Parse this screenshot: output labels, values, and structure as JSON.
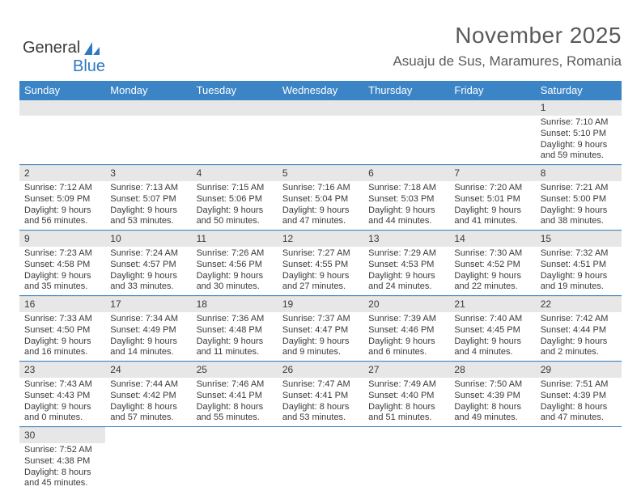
{
  "logo": {
    "word1": "General",
    "word2": "Blue"
  },
  "header": {
    "title": "November 2025",
    "location": "Asuaju de Sus, Maramures, Romania"
  },
  "colors": {
    "header_bg": "#3b85c6",
    "header_fg": "#ffffff",
    "daybar_bg": "#e7e7e7",
    "cell_border": "#3b85c6",
    "text": "#3a3a3a",
    "logo_blue": "#2d79c2"
  },
  "daysOfWeek": [
    "Sunday",
    "Monday",
    "Tuesday",
    "Wednesday",
    "Thursday",
    "Friday",
    "Saturday"
  ],
  "startOffset": 6,
  "days": [
    {
      "n": 1,
      "sunrise": "7:10 AM",
      "sunset": "5:10 PM",
      "dl": "9 hours and 59 minutes."
    },
    {
      "n": 2,
      "sunrise": "7:12 AM",
      "sunset": "5:09 PM",
      "dl": "9 hours and 56 minutes."
    },
    {
      "n": 3,
      "sunrise": "7:13 AM",
      "sunset": "5:07 PM",
      "dl": "9 hours and 53 minutes."
    },
    {
      "n": 4,
      "sunrise": "7:15 AM",
      "sunset": "5:06 PM",
      "dl": "9 hours and 50 minutes."
    },
    {
      "n": 5,
      "sunrise": "7:16 AM",
      "sunset": "5:04 PM",
      "dl": "9 hours and 47 minutes."
    },
    {
      "n": 6,
      "sunrise": "7:18 AM",
      "sunset": "5:03 PM",
      "dl": "9 hours and 44 minutes."
    },
    {
      "n": 7,
      "sunrise": "7:20 AM",
      "sunset": "5:01 PM",
      "dl": "9 hours and 41 minutes."
    },
    {
      "n": 8,
      "sunrise": "7:21 AM",
      "sunset": "5:00 PM",
      "dl": "9 hours and 38 minutes."
    },
    {
      "n": 9,
      "sunrise": "7:23 AM",
      "sunset": "4:58 PM",
      "dl": "9 hours and 35 minutes."
    },
    {
      "n": 10,
      "sunrise": "7:24 AM",
      "sunset": "4:57 PM",
      "dl": "9 hours and 33 minutes."
    },
    {
      "n": 11,
      "sunrise": "7:26 AM",
      "sunset": "4:56 PM",
      "dl": "9 hours and 30 minutes."
    },
    {
      "n": 12,
      "sunrise": "7:27 AM",
      "sunset": "4:55 PM",
      "dl": "9 hours and 27 minutes."
    },
    {
      "n": 13,
      "sunrise": "7:29 AM",
      "sunset": "4:53 PM",
      "dl": "9 hours and 24 minutes."
    },
    {
      "n": 14,
      "sunrise": "7:30 AM",
      "sunset": "4:52 PM",
      "dl": "9 hours and 22 minutes."
    },
    {
      "n": 15,
      "sunrise": "7:32 AM",
      "sunset": "4:51 PM",
      "dl": "9 hours and 19 minutes."
    },
    {
      "n": 16,
      "sunrise": "7:33 AM",
      "sunset": "4:50 PM",
      "dl": "9 hours and 16 minutes."
    },
    {
      "n": 17,
      "sunrise": "7:34 AM",
      "sunset": "4:49 PM",
      "dl": "9 hours and 14 minutes."
    },
    {
      "n": 18,
      "sunrise": "7:36 AM",
      "sunset": "4:48 PM",
      "dl": "9 hours and 11 minutes."
    },
    {
      "n": 19,
      "sunrise": "7:37 AM",
      "sunset": "4:47 PM",
      "dl": "9 hours and 9 minutes."
    },
    {
      "n": 20,
      "sunrise": "7:39 AM",
      "sunset": "4:46 PM",
      "dl": "9 hours and 6 minutes."
    },
    {
      "n": 21,
      "sunrise": "7:40 AM",
      "sunset": "4:45 PM",
      "dl": "9 hours and 4 minutes."
    },
    {
      "n": 22,
      "sunrise": "7:42 AM",
      "sunset": "4:44 PM",
      "dl": "9 hours and 2 minutes."
    },
    {
      "n": 23,
      "sunrise": "7:43 AM",
      "sunset": "4:43 PM",
      "dl": "9 hours and 0 minutes."
    },
    {
      "n": 24,
      "sunrise": "7:44 AM",
      "sunset": "4:42 PM",
      "dl": "8 hours and 57 minutes."
    },
    {
      "n": 25,
      "sunrise": "7:46 AM",
      "sunset": "4:41 PM",
      "dl": "8 hours and 55 minutes."
    },
    {
      "n": 26,
      "sunrise": "7:47 AM",
      "sunset": "4:41 PM",
      "dl": "8 hours and 53 minutes."
    },
    {
      "n": 27,
      "sunrise": "7:49 AM",
      "sunset": "4:40 PM",
      "dl": "8 hours and 51 minutes."
    },
    {
      "n": 28,
      "sunrise": "7:50 AM",
      "sunset": "4:39 PM",
      "dl": "8 hours and 49 minutes."
    },
    {
      "n": 29,
      "sunrise": "7:51 AM",
      "sunset": "4:39 PM",
      "dl": "8 hours and 47 minutes."
    },
    {
      "n": 30,
      "sunrise": "7:52 AM",
      "sunset": "4:38 PM",
      "dl": "8 hours and 45 minutes."
    }
  ],
  "labels": {
    "sunrise": "Sunrise: ",
    "sunset": "Sunset: ",
    "daylight": "Daylight: "
  }
}
